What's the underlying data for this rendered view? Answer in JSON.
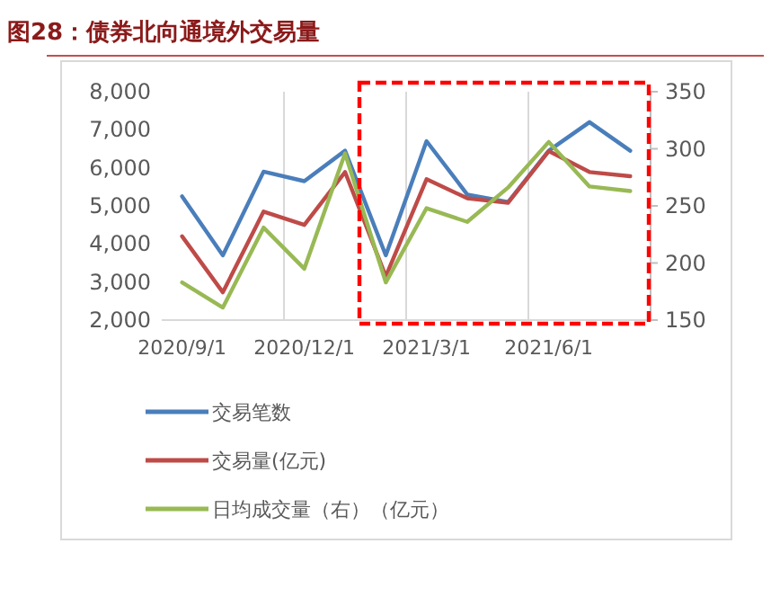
{
  "chart_data": {
    "type": "line",
    "title": "图28：债券北向通境外交易量",
    "categories": [
      "2020/9/1",
      null,
      null,
      "2020/12/1",
      null,
      null,
      "2021/3/1",
      null,
      null,
      "2021/6/1",
      null,
      null
    ],
    "series": [
      {
        "name": "交易笔数",
        "color": "#4a7ebb",
        "values": [
          5250,
          3700,
          5900,
          5650,
          6450,
          3700,
          6700,
          5300,
          5100,
          6450,
          7200,
          6450
        ]
      },
      {
        "name": "交易量(亿元)",
        "color": "#be4b48",
        "values": [
          4200,
          2730,
          4850,
          4500,
          5890,
          3150,
          5700,
          5200,
          5080,
          6440,
          5890,
          5780
        ]
      },
      {
        "name": "日均成交量（右）（亿元）",
        "color": "#98b954",
        "axis": "y2",
        "values": [
          183,
          161,
          231,
          195,
          296,
          183,
          248,
          236,
          266,
          306,
          267,
          263
        ]
      }
    ],
    "ylim": [
      2000,
      8000
    ],
    "yticks": [
      {
        "value": 2000,
        "label": "2,000"
      },
      {
        "value": 3000,
        "label": "3,000"
      },
      {
        "value": 4000,
        "label": "4,000"
      },
      {
        "value": 5000,
        "label": "5,000"
      },
      {
        "value": 6000,
        "label": "6,000"
      },
      {
        "value": 7000,
        "label": "7,000"
      },
      {
        "value": 8000,
        "label": "8,000"
      }
    ],
    "y2lim": [
      150,
      350
    ],
    "y2ticks": [
      150,
      200,
      250,
      300,
      350
    ],
    "grid": "x",
    "legend": "bottom",
    "marker": "none",
    "line_style": "solid"
  }
}
